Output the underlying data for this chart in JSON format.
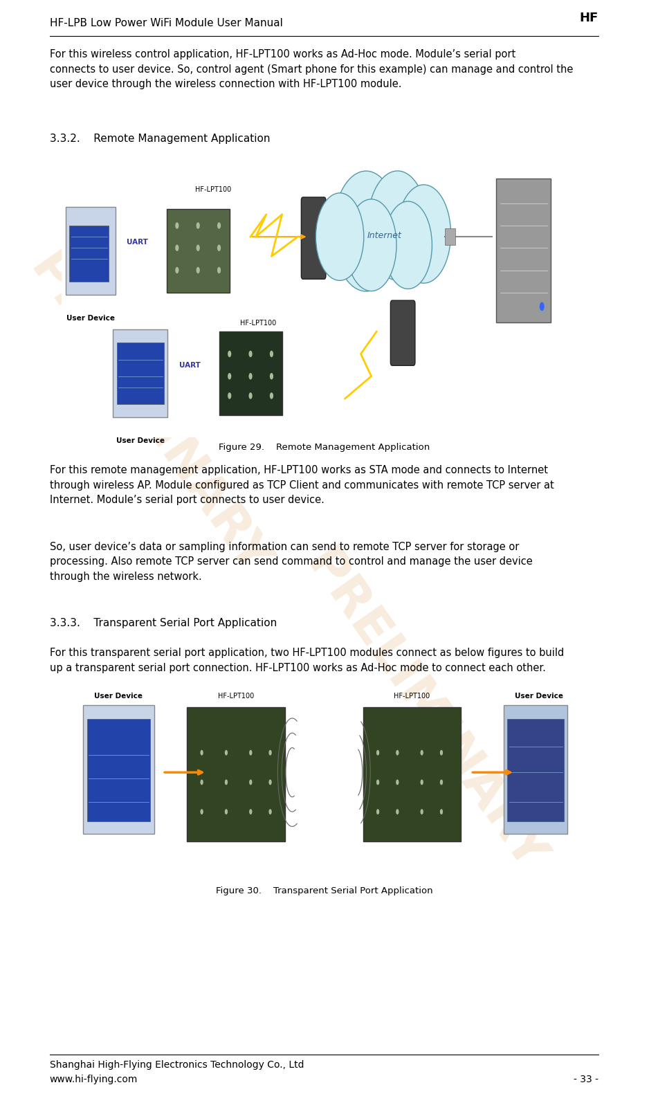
{
  "page_width": 9.51,
  "page_height": 15.81,
  "bg_color": "#ffffff",
  "header_text": "HF-LPB Low Power WiFi Module User Manual",
  "header_fontsize": 11,
  "footer_left": "Shanghai High-Flying Electronics Technology Co., Ltd\nwww.hi-flying.com",
  "footer_right": "- 33 -",
  "footer_fontsize": 10,
  "watermark_text": "PRELIMINARY",
  "watermark_color": "#e8c8a0",
  "watermark_alpha": 0.35,
  "body_text_1": "For this wireless control application, HF-LPT100 works as Ad-Hoc mode. Module’s serial port\nconnects to user device. So, control agent (Smart phone for this example) can manage and control the\nuser device through the wireless connection with HF-LPT100 module.",
  "section_332": "3.3.2.    Remote Management Application",
  "fig29_caption": "Figure 29.    Remote Management Application",
  "body_text_2": "For this remote management application, HF-LPT100 works as STA mode and connects to Internet\nthrough wireless AP. Module configured as TCP Client and communicates with remote TCP server at\nInternet. Module’s serial port connects to user device.",
  "body_text_3": "So, user device’s data or sampling information can send to remote TCP server for storage or\nprocessing. Also remote TCP server can send command to control and manage the user device\nthrough the wireless network.",
  "section_333": "3.3.3.    Transparent Serial Port Application",
  "body_text_4": "For this transparent serial port application, two HF-LPT100 modules connect as below figures to build\nup a transparent serial port connection. HF-LPT100 works as Ad-Hoc mode to connect each other.",
  "fig30_caption": "Figure 30.    Transparent Serial Port Application",
  "text_color": "#000000",
  "body_fontsize": 10.5,
  "section_fontsize": 11
}
